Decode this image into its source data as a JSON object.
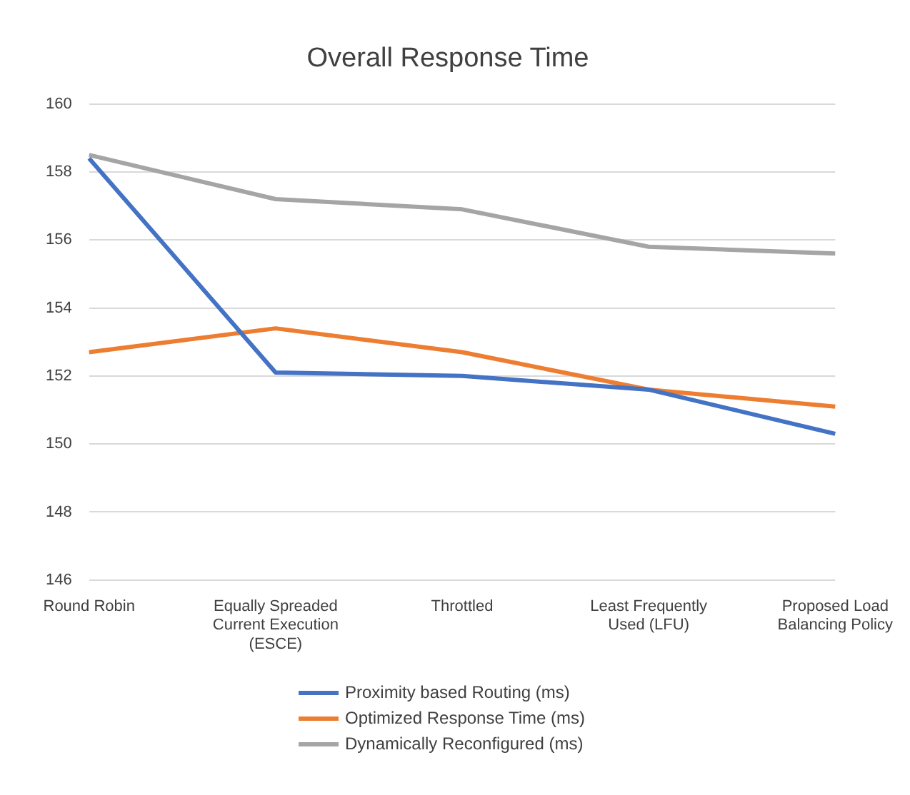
{
  "chart_data": {
    "type": "line",
    "title": "Overall Response Time",
    "categories": [
      "Round Robin",
      "Equally Spreaded Current Execution (ESCE)",
      "Throttled",
      "Least Frequently Used (LFU)",
      "Proposed Load Balancing Policy"
    ],
    "series": [
      {
        "name": "Proximity based Routing (ms)",
        "color": "#4472c4",
        "values": [
          158.4,
          152.1,
          152.0,
          151.6,
          150.3
        ]
      },
      {
        "name": "Optimized Response Time (ms)",
        "color": "#ed7d31",
        "values": [
          152.7,
          153.4,
          152.7,
          151.6,
          151.1
        ]
      },
      {
        "name": "Dynamically Reconfigured (ms)",
        "color": "#a5a5a5",
        "values": [
          158.5,
          157.2,
          156.9,
          155.8,
          155.6
        ]
      }
    ],
    "ylim": [
      146,
      160
    ],
    "yticks": [
      146,
      148,
      150,
      152,
      154,
      156,
      158,
      160
    ],
    "grid": "y",
    "legend": "bottom",
    "marker": "none",
    "line_style": "solid"
  }
}
